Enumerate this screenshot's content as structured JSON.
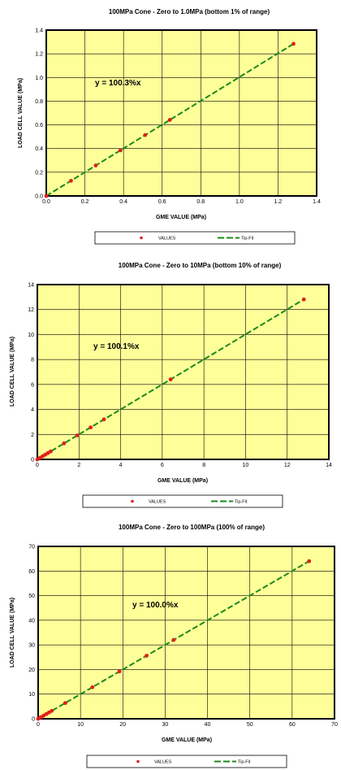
{
  "chart_data": [
    {
      "type": "scatter",
      "title": "100MPa Cone - Zero to 1.0MPa (bottom 1% of range)",
      "xlabel": "GME VALUE (MPa)",
      "ylabel": "LOAD CELL VALUE (MPa)",
      "xlim": [
        0,
        1.4
      ],
      "ylim": [
        0,
        1.4
      ],
      "xticks": [
        "0.0",
        "0.2",
        "0.4",
        "0.6",
        "0.8",
        "1.0",
        "1.2",
        "1.4"
      ],
      "yticks": [
        "0.0",
        "0.2",
        "0.4",
        "0.6",
        "0.8",
        "1.0",
        "1.2",
        "1.4"
      ],
      "grid": true,
      "equation": "y = 100.3%x",
      "fit_slope": 1.003,
      "series": [
        {
          "name": "VALUES",
          "x": [
            0,
            0.128,
            0.256,
            0.384,
            0.512,
            0.64,
            1.28
          ],
          "y": [
            0,
            0.128,
            0.257,
            0.385,
            0.514,
            0.642,
            1.284
          ]
        },
        {
          "name": "Tip-Fit"
        }
      ],
      "legend": "bottom"
    },
    {
      "type": "scatter",
      "title": "100MPa Cone - Zero to 10MPa (bottom 10% of range)",
      "xlabel": "GME VALUE (MPa)",
      "ylabel": "LOAD CELL VALUE (MPa)",
      "xlim": [
        0,
        14
      ],
      "ylim": [
        0,
        14
      ],
      "xticks": [
        "0",
        "2",
        "4",
        "6",
        "8",
        "10",
        "12",
        "14"
      ],
      "yticks": [
        "0",
        "2",
        "4",
        "6",
        "8",
        "10",
        "12",
        "14"
      ],
      "grid": true,
      "equation": "y = 100.1%x",
      "fit_slope": 1.001,
      "series": [
        {
          "name": "VALUES",
          "x": [
            0,
            0.128,
            0.256,
            0.384,
            0.512,
            0.64,
            1.28,
            1.92,
            2.56,
            3.2,
            6.4,
            12.8
          ],
          "y": [
            0,
            0.128,
            0.256,
            0.385,
            0.513,
            0.641,
            1.281,
            1.922,
            2.563,
            3.203,
            6.406,
            12.81
          ]
        },
        {
          "name": "Tip-Fit"
        }
      ],
      "legend": "bottom"
    },
    {
      "type": "scatter",
      "title": "100MPa Cone - Zero to 100MPa (100% of range)",
      "xlabel": "GME VALUE (MPa)",
      "ylabel": "LOAD CELL VALUE (MPa)",
      "xlim": [
        0,
        70
      ],
      "ylim": [
        0,
        70
      ],
      "xticks": [
        "0",
        "10",
        "20",
        "30",
        "40",
        "50",
        "60",
        "70"
      ],
      "yticks": [
        "0",
        "10",
        "20",
        "30",
        "40",
        "50",
        "60",
        "70"
      ],
      "grid": true,
      "equation": "y = 100.0%x",
      "fit_slope": 1.0,
      "series": [
        {
          "name": "VALUES",
          "x": [
            0,
            0.64,
            1.28,
            1.92,
            2.56,
            3.2,
            6.4,
            12.8,
            19.2,
            25.6,
            32,
            64
          ],
          "y": [
            0,
            0.64,
            1.28,
            1.92,
            2.56,
            3.2,
            6.4,
            12.8,
            19.2,
            25.6,
            32,
            64
          ]
        },
        {
          "name": "Tip-Fit"
        }
      ],
      "legend": "bottom"
    }
  ],
  "colors": {
    "plot_bg": "#ffff99",
    "marker": "#e0201a",
    "fit_line": "#1a8a1a",
    "grid": "#000000"
  }
}
